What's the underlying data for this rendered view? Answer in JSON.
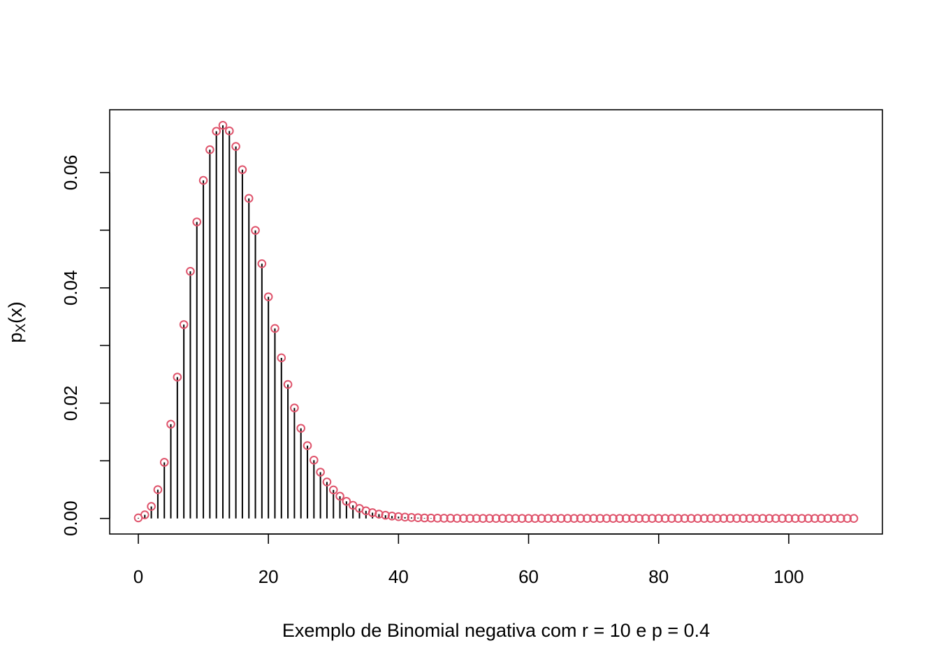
{
  "chart_data": {
    "type": "scatter",
    "style": "stem-with-open-circles",
    "xlabel": "Exemplo de Binomial negativa com  r = 10 e p = 0.4",
    "ylabel_main": "p",
    "ylabel_sub": "X",
    "ylabel_tail": "(x)",
    "xlim": [
      -4.4,
      114.4
    ],
    "ylim": [
      -0.0027,
      0.0709
    ],
    "x_ticks": [
      0,
      20,
      40,
      60,
      80,
      100
    ],
    "x_tick_labels": [
      "0",
      "20",
      "40",
      "60",
      "80",
      "100"
    ],
    "y_ticks": [
      0.0,
      0.02,
      0.04,
      0.06
    ],
    "y_tick_labels": [
      "0.00",
      "0.02",
      "0.04",
      "0.06"
    ],
    "grid": false,
    "stem_color": "#000000",
    "point_color": "#DF536B",
    "series": [
      {
        "x": [
          0,
          1,
          2,
          3,
          4,
          5,
          6,
          7,
          8,
          9,
          10,
          11,
          12,
          13,
          14,
          15,
          16,
          17,
          18,
          19,
          20,
          21,
          22,
          23,
          24,
          25,
          26,
          27,
          28,
          29,
          30,
          31,
          32,
          33,
          34,
          35,
          36,
          37,
          38,
          39,
          40,
          41,
          42,
          43,
          44,
          45,
          46,
          47,
          48,
          49,
          50,
          51,
          52,
          53,
          54,
          55,
          56,
          57,
          58,
          59,
          60,
          61,
          62,
          63,
          64,
          65,
          66,
          67,
          68,
          69,
          70,
          71,
          72,
          73,
          74,
          75,
          76,
          77,
          78,
          79,
          80,
          81,
          82,
          83,
          84,
          85,
          86,
          87,
          88,
          89,
          90,
          91,
          92,
          93,
          94,
          95,
          96,
          97,
          98,
          99,
          100,
          101,
          102,
          103,
          104,
          105,
          106,
          107,
          108,
          109,
          110
        ],
        "values": [
          0.0001,
          0.00063,
          0.00208,
          0.00499,
          0.00973,
          0.01635,
          0.02452,
          0.03363,
          0.04287,
          0.05144,
          0.05864,
          0.06397,
          0.06717,
          0.0682,
          0.06722,
          0.06453,
          0.0605,
          0.05552,
          0.04997,
          0.04419,
          0.03845,
          0.03296,
          0.02786,
          0.02324,
          0.01917,
          0.01564,
          0.01263,
          0.01011,
          0.00803,
          0.00633,
          0.00495,
          0.00385,
          0.00297,
          0.00228,
          0.00174,
          0.00132,
          0.001,
          0.00075,
          0.00056,
          0.00042,
          0.00031,
          0.00023,
          0.00017,
          0.00013,
          9e-05,
          7e-05,
          5e-05,
          4e-05,
          3e-05,
          2e-05,
          1e-05,
          1e-05,
          1e-05,
          0,
          0,
          0,
          0,
          0,
          0,
          0,
          0,
          0,
          0,
          0,
          0,
          0,
          0,
          0,
          0,
          0,
          0,
          0,
          0,
          0,
          0,
          0,
          0,
          0,
          0,
          0,
          0,
          0,
          0,
          0,
          0,
          0,
          0,
          0,
          0,
          0,
          0,
          0,
          0,
          0,
          0,
          0,
          0,
          0,
          0,
          0,
          0,
          0,
          0,
          0,
          0,
          0,
          0,
          0,
          0,
          0,
          0
        ]
      }
    ]
  }
}
